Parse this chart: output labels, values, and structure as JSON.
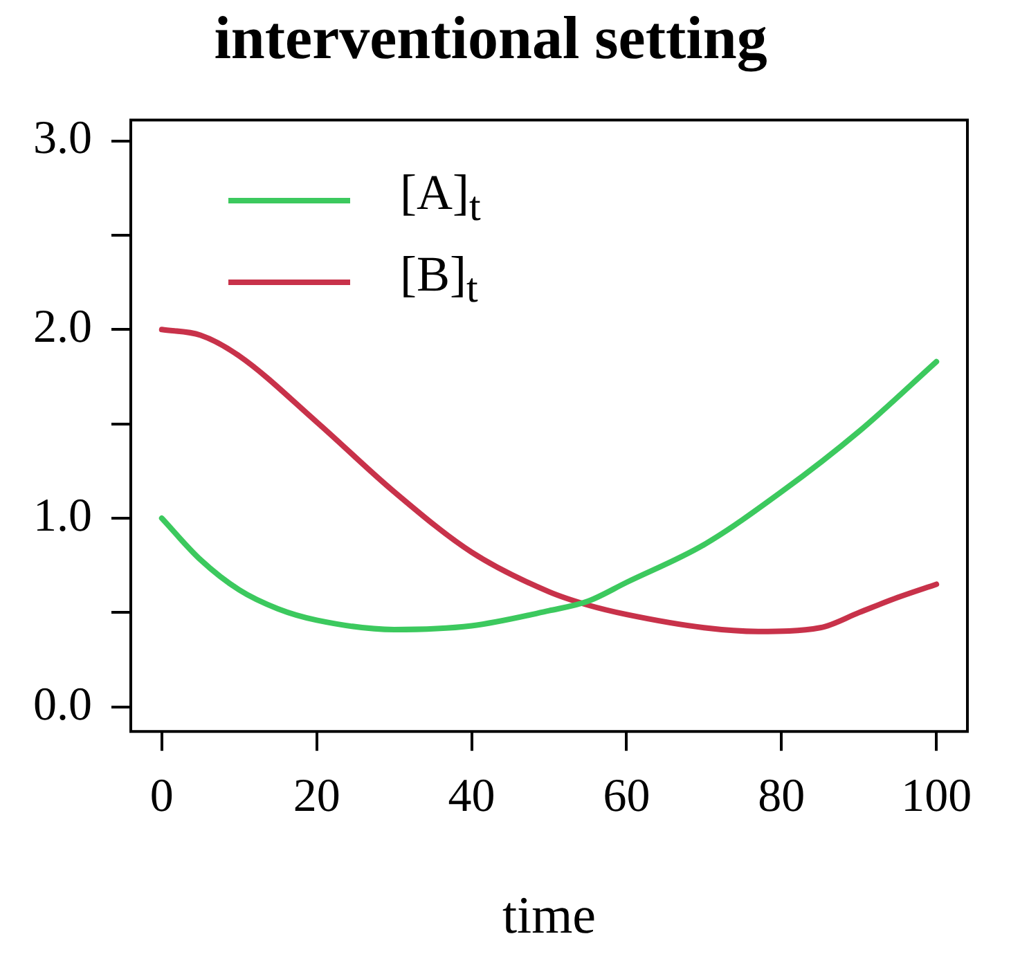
{
  "chart_data": {
    "type": "line",
    "title": "interventional setting",
    "xlabel": "time",
    "xlim": [
      -4,
      104
    ],
    "xticks": [
      0,
      20,
      40,
      60,
      80,
      100
    ],
    "ylim": [
      -0.13,
      3.11
    ],
    "yticks": [
      {
        "value": 0,
        "label": "0.0"
      },
      {
        "value": 0.5,
        "label": null
      },
      {
        "value": 1,
        "label": "1.0"
      },
      {
        "value": 1.5,
        "label": null
      },
      {
        "value": 2,
        "label": "2.0"
      },
      {
        "value": 2.5,
        "label": null
      },
      {
        "value": 3,
        "label": "3.0"
      }
    ],
    "grid": false,
    "legend": "top left",
    "marker": "none",
    "line_style": "solid",
    "series": [
      {
        "name": "[A]$_{t}$",
        "color": "#3cc95e",
        "x": [
          0,
          5,
          10,
          15,
          20,
          30,
          40,
          50,
          55,
          60,
          70,
          80,
          90,
          100
        ],
        "values": [
          1.0,
          0.78,
          0.62,
          0.52,
          0.46,
          0.41,
          0.43,
          0.51,
          0.56,
          0.66,
          0.86,
          1.14,
          1.46,
          1.83
        ]
      },
      {
        "name": "[B]$_{t}$",
        "color": "#c8324a",
        "x": [
          0,
          5,
          10,
          20,
          30,
          40,
          50,
          55,
          60,
          70,
          77,
          85,
          90,
          95,
          100
        ],
        "values": [
          2.0,
          1.97,
          1.86,
          1.51,
          1.14,
          0.82,
          0.61,
          0.54,
          0.49,
          0.42,
          0.4,
          0.42,
          0.5,
          0.58,
          0.65
        ]
      }
    ]
  }
}
